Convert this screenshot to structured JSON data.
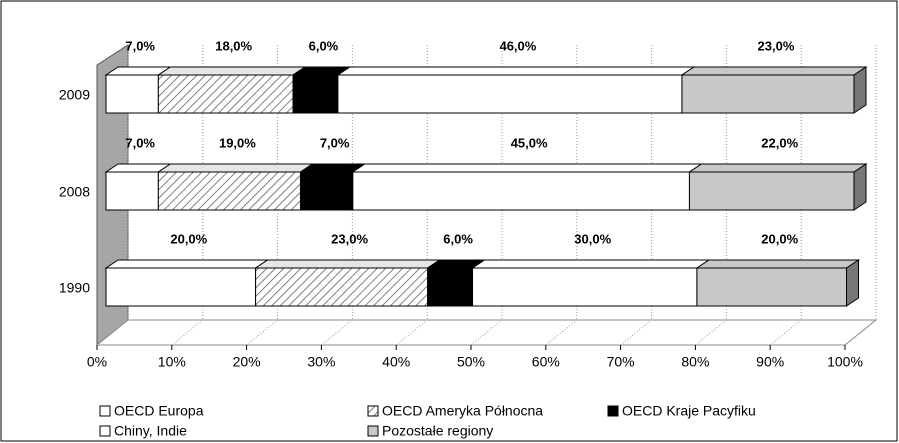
{
  "chart_data": {
    "type": "bar",
    "orientation": "horizontal",
    "stacked": true,
    "three_d": true,
    "categories": [
      "2009",
      "2008",
      "1990"
    ],
    "series": [
      {
        "name": "OECD Europa",
        "color": "#ffffff",
        "values": [
          7,
          7,
          20
        ],
        "value_labels": [
          "7,0%",
          "7,0%",
          "20,0%"
        ]
      },
      {
        "name": "OECD Ameryka Północna",
        "color": "#ffffff",
        "pattern": "diagonal-hatch",
        "values": [
          18,
          19,
          23
        ],
        "value_labels": [
          "18,0%",
          "19,0%",
          "23,0%"
        ]
      },
      {
        "name": "OECD Kraje Pacyfiku",
        "color": "#000000",
        "values": [
          6,
          7,
          6
        ],
        "value_labels": [
          "6,0%",
          "7,0%",
          "6,0%"
        ]
      },
      {
        "name": "Chiny, Indie",
        "color": "#ffffff",
        "values": [
          46,
          45,
          30
        ],
        "value_labels": [
          "46,0%",
          "45,0%",
          "30,0%"
        ]
      },
      {
        "name": "Pozostałe regiony",
        "color": "#c8c8c8",
        "values": [
          23,
          22,
          20
        ],
        "value_labels": [
          "23,0%",
          "22,0%",
          "20,0%"
        ]
      }
    ],
    "xlim": [
      0,
      100
    ],
    "xticks": [
      {
        "value": 0,
        "label": "0%"
      },
      {
        "value": 10,
        "label": "10%"
      },
      {
        "value": 20,
        "label": "20%"
      },
      {
        "value": 30,
        "label": "30%"
      },
      {
        "value": 40,
        "label": "40%"
      },
      {
        "value": 50,
        "label": "50%"
      },
      {
        "value": 60,
        "label": "60%"
      },
      {
        "value": 70,
        "label": "70%"
      },
      {
        "value": 80,
        "label": "80%"
      },
      {
        "value": 90,
        "label": "90%"
      },
      {
        "value": 100,
        "label": "100%"
      }
    ],
    "grid": true,
    "legend": "bottom"
  }
}
